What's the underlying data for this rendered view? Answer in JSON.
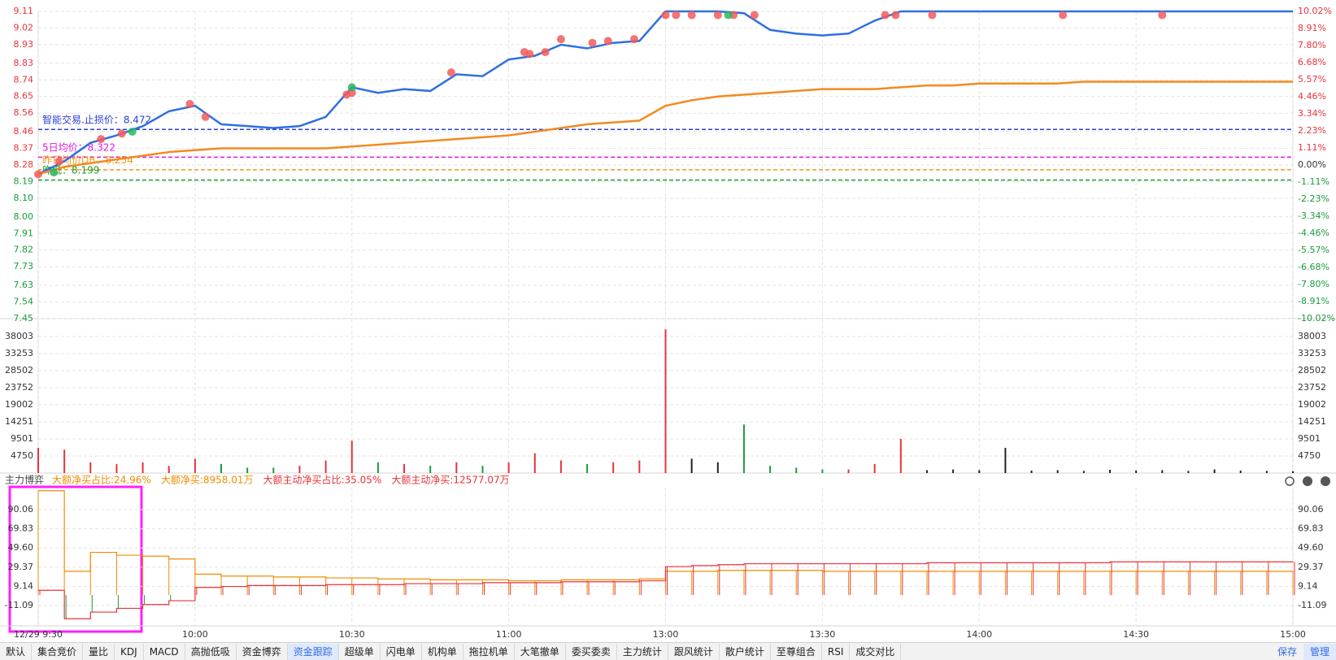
{
  "chart_data": [
    {
      "type": "line",
      "xlim": [
        0,
        240
      ],
      "ylim": [
        7.45,
        9.11
      ],
      "y2lim": [
        -10.02,
        10.02
      ],
      "yticks": [
        9.11,
        9.02,
        8.93,
        8.83,
        8.74,
        8.65,
        8.56,
        8.46,
        8.37,
        8.28,
        8.19,
        {
          "value": 8.1,
          "label": "8.10"
        },
        {
          "value": 8,
          "label": "8.00"
        },
        7.91,
        7.82,
        7.73,
        7.63,
        7.54,
        7.45
      ],
      "y2ticks": [
        {
          "value": 10.02,
          "label": "10.02%"
        },
        {
          "value": 8.91,
          "label": "8.91%"
        },
        {
          "value": 7.8,
          "label": "7.80%"
        },
        {
          "value": 6.68,
          "label": "6.68%"
        },
        {
          "value": 5.57,
          "label": "5.57%"
        },
        {
          "value": 4.46,
          "label": "4.46%"
        },
        {
          "value": 3.34,
          "label": "3.34%"
        },
        {
          "value": 2.23,
          "label": "2.23%"
        },
        {
          "value": 1.11,
          "label": "1.11%"
        },
        {
          "value": 0,
          "label": "0.00%"
        },
        {
          "value": -1.11,
          "label": "-1.11%"
        },
        {
          "value": -2.23,
          "label": "-2.23%"
        },
        {
          "value": -3.34,
          "label": "-3.34%"
        },
        {
          "value": -4.46,
          "label": "-4.46%"
        },
        {
          "value": -5.57,
          "label": "-5.57%"
        },
        {
          "value": -6.68,
          "label": "-6.68%"
        },
        {
          "value": -7.8,
          "label": "-7.80%"
        },
        {
          "value": -8.91,
          "label": "-8.91%"
        },
        {
          "value": -10.02,
          "label": "-10.02%"
        }
      ],
      "grid": true,
      "x": [
        0,
        5,
        10,
        15,
        20,
        25,
        30,
        35,
        40,
        45,
        50,
        55,
        60,
        65,
        70,
        75,
        80,
        85,
        90,
        95,
        100,
        105,
        110,
        115,
        120,
        125,
        130,
        135,
        140,
        145,
        150,
        155,
        160,
        165,
        170,
        175,
        180,
        185,
        190,
        195,
        200,
        205,
        210,
        215,
        220,
        225,
        230,
        235,
        240
      ],
      "series": [
        {
          "color": "#2f6fe4",
          "values": [
            8.23,
            8.3,
            8.4,
            8.44,
            8.49,
            8.57,
            8.6,
            8.5,
            8.49,
            8.48,
            8.49,
            8.54,
            8.7,
            8.67,
            8.69,
            8.68,
            8.77,
            8.76,
            8.85,
            8.87,
            8.93,
            8.91,
            8.94,
            8.95,
            9.11,
            9.11,
            9.11,
            9.1,
            9.01,
            8.99,
            8.98,
            8.99,
            9.06,
            9.11,
            9.11,
            9.11,
            9.11,
            9.11,
            9.11,
            9.11,
            9.11,
            9.11,
            9.11,
            9.11,
            9.11,
            9.11,
            9.11,
            9.11,
            9.11
          ]
        },
        {
          "color": "#f5891f",
          "values": [
            8.23,
            8.27,
            8.29,
            8.31,
            8.33,
            8.35,
            8.36,
            8.37,
            8.37,
            8.37,
            8.37,
            8.37,
            8.38,
            8.39,
            8.4,
            8.41,
            8.42,
            8.43,
            8.44,
            8.46,
            8.48,
            8.5,
            8.51,
            8.52,
            8.6,
            8.63,
            8.65,
            8.66,
            8.67,
            8.68,
            8.69,
            8.69,
            8.69,
            8.7,
            8.71,
            8.71,
            8.72,
            8.72,
            8.72,
            8.72,
            8.73,
            8.73,
            8.73,
            8.73,
            8.73,
            8.73,
            8.73,
            8.73,
            8.73
          ]
        }
      ],
      "signals": [
        {
          "color": "#f25a5a",
          "x": [
            0,
            4,
            12,
            16,
            29,
            32,
            59,
            60,
            79,
            93,
            94,
            97,
            100,
            106,
            109,
            114,
            120,
            122,
            125,
            130,
            133,
            137,
            162,
            164,
            171,
            196,
            215
          ],
          "values": [
            8.23,
            8.3,
            8.42,
            8.45,
            8.61,
            8.54,
            8.66,
            8.67,
            8.78,
            8.89,
            8.88,
            8.89,
            8.96,
            8.94,
            8.95,
            8.96,
            9.09,
            9.09,
            9.09,
            9.09,
            9.09,
            9.09,
            9.09,
            9.09,
            9.09,
            9.09,
            9.09
          ]
        },
        {
          "color": "#27b860",
          "x": [
            3,
            18,
            60,
            132
          ],
          "values": [
            8.24,
            8.46,
            8.7,
            9.09
          ]
        }
      ],
      "reference_lines": [
        {
          "label": "智能交易.止损价：",
          "value": 8.472,
          "color": "#2a3fd1"
        },
        {
          "label": "5日均价：",
          "value": 8.322,
          "color": "#e816e8"
        },
        {
          "label": "昨日均价DB：",
          "value": 8.254,
          "color": "#f39a1b"
        },
        {
          "label": "昨低：",
          "value": 8.199,
          "color": "#1f9b2f"
        }
      ],
      "up_color": "#e8333a",
      "down_color": "#1a9b3c"
    },
    {
      "type": "bar",
      "xlim": [
        0,
        240
      ],
      "ylim": [
        0,
        42753
      ],
      "yticks": [
        38003,
        33253,
        28502,
        23752,
        19002,
        14251,
        9501,
        4750
      ],
      "grid": true,
      "x": [
        0,
        5,
        10,
        15,
        20,
        25,
        30,
        35,
        40,
        45,
        50,
        55,
        60,
        65,
        70,
        75,
        80,
        85,
        90,
        95,
        100,
        105,
        110,
        115,
        120,
        125,
        130,
        135,
        140,
        145,
        150,
        155,
        160,
        165,
        170,
        175,
        180,
        185,
        190,
        195,
        200,
        205,
        210,
        215,
        220,
        225,
        230,
        235,
        240
      ],
      "values": [
        7000,
        6500,
        3000,
        2500,
        3000,
        2000,
        4000,
        2500,
        1500,
        1500,
        2000,
        3500,
        9000,
        3000,
        2500,
        2000,
        3000,
        2000,
        3000,
        5500,
        3500,
        2500,
        3000,
        3500,
        40000,
        4000,
        3000,
        13500,
        2000,
        1500,
        1000,
        1000,
        2500,
        9500,
        800,
        1000,
        800,
        7000,
        700,
        800,
        600,
        900,
        700,
        800,
        600,
        1000,
        700,
        600,
        500
      ],
      "up_color": "#e8333a",
      "down_color": "#1a9b3c",
      "flat_color": "#222222"
    },
    {
      "type": "line",
      "title": "主力博弈",
      "legend": [
        {
          "text": "大额净买占比:24.96%",
          "color": "#f08c00"
        },
        {
          "text": "大额净买:8958.01万",
          "color": "#f08c00"
        },
        {
          "text": "大额主动净买占比:35.05%",
          "color": "#e8333a"
        },
        {
          "text": "大额主动净买:12577.07万",
          "color": "#e8333a"
        }
      ],
      "xlim": [
        0,
        240
      ],
      "ylim": [
        -32.5,
        113.2
      ],
      "yticks": [
        90.06,
        69.83,
        {
          "value": 49.6,
          "label": "49.60"
        },
        29.37,
        9.14,
        -11.09
      ],
      "xticks": [
        {
          "value": 0,
          "label": "12/29 9:30"
        },
        {
          "value": 30,
          "label": "10:00"
        },
        {
          "value": 60,
          "label": "10:30"
        },
        {
          "value": 90,
          "label": "11:00"
        },
        {
          "value": 120,
          "label": "13:00"
        },
        {
          "value": 150,
          "label": "13:30"
        },
        {
          "value": 180,
          "label": "14:00"
        },
        {
          "value": 210,
          "label": "14:30"
        },
        {
          "value": 240,
          "label": "15:00"
        }
      ],
      "grid": true,
      "x": [
        0,
        5,
        10,
        15,
        20,
        25,
        30,
        35,
        40,
        45,
        50,
        55,
        60,
        65,
        70,
        75,
        80,
        85,
        90,
        95,
        100,
        105,
        110,
        115,
        120,
        125,
        130,
        135,
        140,
        145,
        150,
        155,
        160,
        165,
        170,
        175,
        180,
        185,
        190,
        195,
        200,
        205,
        210,
        215,
        220,
        225,
        230,
        235,
        240
      ],
      "series": [
        {
          "color": "#f08c00",
          "values": [
            110,
            25,
            45,
            42,
            41,
            38,
            22,
            20,
            20,
            19,
            19,
            18,
            18,
            17,
            17,
            16,
            16,
            16,
            15,
            15,
            16,
            16,
            16,
            17,
            25,
            25,
            26,
            26,
            26,
            26,
            25,
            25,
            25,
            25,
            25,
            25,
            25,
            25,
            25,
            25,
            25,
            25,
            25,
            25,
            25,
            25,
            25,
            25,
            24.96
          ]
        },
        {
          "color": "#e8333a",
          "negative_color": "#1a9b3c",
          "values": [
            5,
            -25,
            -18,
            -14,
            -10,
            -6,
            8,
            9,
            10,
            10,
            10,
            11,
            11,
            11,
            12,
            12,
            12,
            13,
            13,
            13,
            14,
            14,
            14,
            15,
            30,
            31,
            32,
            33,
            33,
            33,
            33,
            33,
            33,
            33,
            34,
            34,
            34,
            34,
            34,
            34,
            34,
            35,
            35,
            35,
            35,
            35,
            35,
            35,
            35.05
          ]
        }
      ]
    }
  ],
  "tabs": [
    "默认",
    "集合竞价",
    "量比",
    "KDJ",
    "MACD",
    "高抛低吸",
    "资金博弈",
    "资金跟踪",
    "超级单",
    "闪电单",
    "机构单",
    "拖拉机单",
    "大笔撤单",
    "委买委卖",
    "主力统计",
    "跟风统计",
    "散户统计",
    "至尊组合",
    "RSI",
    "成交对比"
  ],
  "active_tab": 7,
  "buttons": [
    "保存",
    "管理"
  ]
}
